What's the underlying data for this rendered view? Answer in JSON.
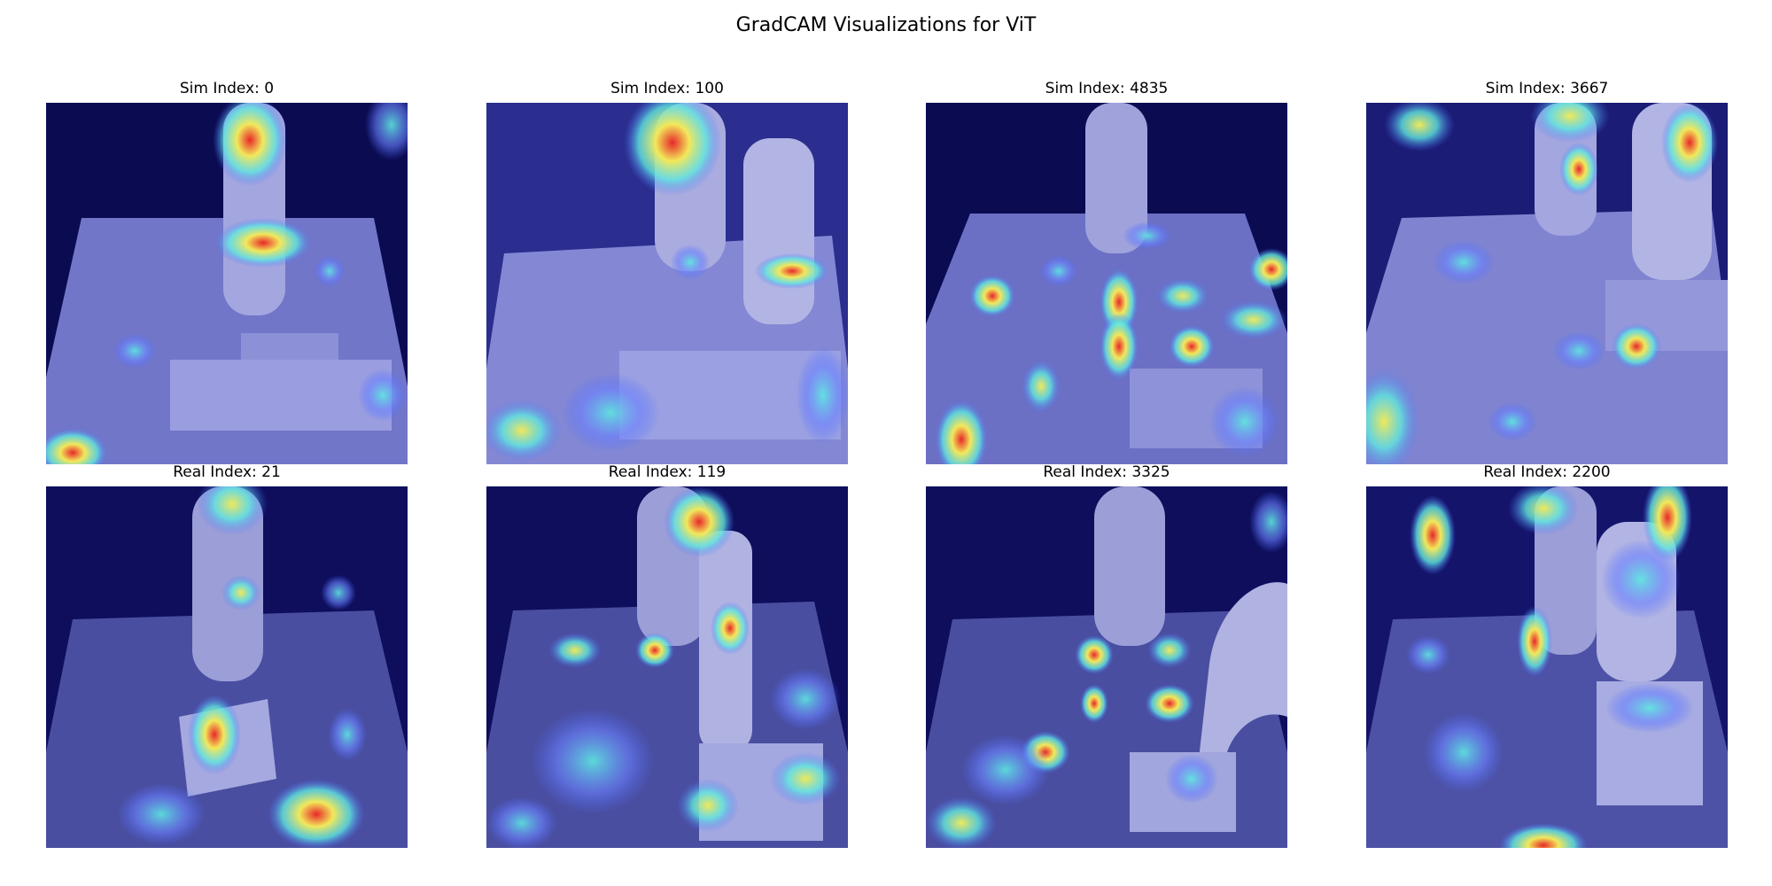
{
  "figure": {
    "title": "GradCAM Visualizations for ViT"
  },
  "panels": [
    {
      "id": "sim-0",
      "title": "Sim Index: 0",
      "kind": "sim"
    },
    {
      "id": "sim-100",
      "title": "Sim Index: 100",
      "kind": "sim"
    },
    {
      "id": "sim-4835",
      "title": "Sim Index: 4835",
      "kind": "sim"
    },
    {
      "id": "sim-3667",
      "title": "Sim Index: 3667",
      "kind": "sim"
    },
    {
      "id": "real-21",
      "title": "Real Index: 21",
      "kind": "real"
    },
    {
      "id": "real-119",
      "title": "Real Index: 119",
      "kind": "real"
    },
    {
      "id": "real-3325",
      "title": "Real Index: 3325",
      "kind": "real"
    },
    {
      "id": "real-2200",
      "title": "Real Index: 2200",
      "kind": "real"
    }
  ],
  "colors": {
    "cold": "#1a1a8c",
    "cool": "#4a6cff",
    "mid": "#5ee8e0",
    "warm": "#f2e85a",
    "hot": "#e8282a"
  }
}
